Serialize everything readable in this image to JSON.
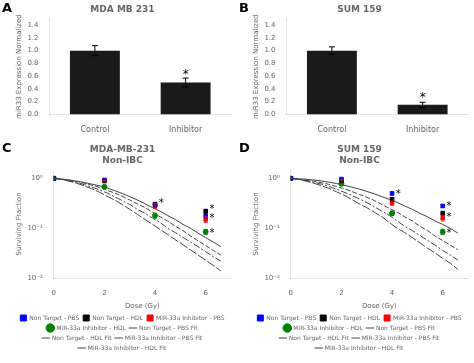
{
  "chart_data": [
    {
      "type": "bar",
      "panel_label": "A",
      "title": "MDA MB 231",
      "categories": [
        "Control",
        "Inhibitor"
      ],
      "values": [
        1.0,
        0.5
      ],
      "errors": [
        0.08,
        0.07
      ],
      "color": "#1a1a1a",
      "ylabel": "miR33 Expression Normalized",
      "ylim": [
        0,
        1.5
      ],
      "yticks": [
        {
          "value": 0,
          "label": "0.0"
        },
        0.2,
        0.4,
        0.6,
        0.8,
        {
          "value": 1,
          "label": "1.0"
        },
        1.2,
        1.4
      ],
      "grid": false,
      "annotations": [
        {
          "x": "Inhibitor",
          "y": 0.58,
          "text": "*"
        }
      ]
    },
    {
      "type": "bar",
      "panel_label": "B",
      "title": "SUM 159",
      "categories": [
        "Control",
        "Inhibitor"
      ],
      "values": [
        1.0,
        0.15
      ],
      "errors": [
        0.06,
        0.04
      ],
      "color": "#1a1a1a",
      "ylabel": "miR33 Expression Normalized",
      "ylim": [
        0,
        1.5
      ],
      "yticks": [
        {
          "value": 0,
          "label": "0.0"
        },
        0.2,
        0.4,
        0.6,
        0.8,
        {
          "value": 1,
          "label": "1.0"
        },
        1.2,
        1.4
      ],
      "grid": false,
      "annotations": [
        {
          "x": "Inhibitor",
          "y": 0.22,
          "text": "*"
        }
      ]
    },
    {
      "type": "line",
      "panel_label": "C",
      "title": "MDA-MB-231\nNon-IBC",
      "xlabel": "Dose (Gy)",
      "ylabel": "Surviving Fraction",
      "log": "y",
      "xlim": [
        0,
        7
      ],
      "xticks": [
        0,
        2,
        4,
        6
      ],
      "ylim": [
        0.01,
        1.5
      ],
      "yticks": [
        {
          "value": 0.01,
          "label": "10⁻²"
        },
        {
          "value": 0.1,
          "label": "10⁻¹"
        },
        {
          "value": 1,
          "label": "10⁰"
        }
      ],
      "grid": false,
      "legend": "bottom",
      "series": [
        {
          "name": "Non Target - PBS",
          "type": "scatter",
          "color": "blue",
          "marker": "square",
          "x": [
            0,
            2,
            4,
            6
          ],
          "values": [
            1.0,
            0.93,
            0.3,
            0.18
          ],
          "errors": [
            0.0,
            0.03,
            0.03,
            0.02
          ]
        },
        {
          "name": "Non Target - HDL",
          "type": "scatter",
          "color": "black",
          "marker": "square",
          "x": [
            0,
            2,
            4,
            6
          ],
          "values": [
            1.0,
            0.9,
            0.3,
            0.22
          ],
          "errors": [
            0.0,
            0.03,
            0.03,
            0.02
          ]
        },
        {
          "name": "MiR-33a Inhibitor - PBS",
          "type": "scatter",
          "color": "red",
          "marker": "square",
          "x": [
            0,
            2,
            4,
            6
          ],
          "values": [
            1.0,
            0.88,
            0.28,
            0.15
          ],
          "errors": [
            0.0,
            0.03,
            0.03,
            0.02
          ]
        },
        {
          "name": "MiR-33a Inhibitor - HDL",
          "type": "scatter",
          "color": "green",
          "marker": "circle",
          "x": [
            0,
            2,
            4,
            6
          ],
          "values": [
            1.0,
            0.68,
            0.18,
            0.085
          ],
          "errors": [
            0.0,
            0.04,
            0.02,
            0.01
          ]
        },
        {
          "name": "Non Target - PBS Fit",
          "type": "line",
          "color": "#444444",
          "line_style": "solid",
          "x": [
            0,
            0.3,
            0.6,
            0.9,
            1.2,
            1.5,
            1.8,
            2.1,
            2.4,
            2.7,
            3.0,
            3.3,
            3.6,
            3.9,
            4.2,
            4.5,
            4.8,
            5.1,
            5.4,
            5.7,
            6.0,
            6.3,
            6.6
          ],
          "values": [
            1.0,
            0.97,
            0.93,
            0.88,
            0.83,
            0.77,
            0.71,
            0.64,
            0.57,
            0.5,
            0.43,
            0.37,
            0.31,
            0.26,
            0.22,
            0.18,
            0.15,
            0.12,
            0.1,
            0.08,
            0.065,
            0.053,
            0.043
          ]
        },
        {
          "name": "Non Target - HDL Fit",
          "type": "line",
          "color": "#444444",
          "line_style": "dashed",
          "x": [
            0,
            0.3,
            0.6,
            0.9,
            1.2,
            1.5,
            1.8,
            2.1,
            2.4,
            2.7,
            3.0,
            3.3,
            3.6,
            3.9,
            4.2,
            4.5,
            4.8,
            5.1,
            5.4,
            5.7,
            6.0,
            6.3,
            6.6
          ],
          "values": [
            1.0,
            0.97,
            0.92,
            0.87,
            0.8,
            0.73,
            0.66,
            0.58,
            0.51,
            0.44,
            0.37,
            0.31,
            0.26,
            0.21,
            0.17,
            0.14,
            0.11,
            0.09,
            0.07,
            0.056,
            0.045,
            0.036,
            0.029
          ]
        },
        {
          "name": "MiR-33a Inhibitor - PBS Fit",
          "type": "line",
          "color": "#444444",
          "line_style": "dashdot",
          "x": [
            0,
            0.3,
            0.6,
            0.9,
            1.2,
            1.5,
            1.8,
            2.1,
            2.4,
            2.7,
            3.0,
            3.3,
            3.6,
            3.9,
            4.2,
            4.5,
            4.8,
            5.1,
            5.4,
            5.7,
            6.0,
            6.3,
            6.6
          ],
          "values": [
            1.0,
            0.96,
            0.9,
            0.83,
            0.75,
            0.67,
            0.59,
            0.51,
            0.43,
            0.36,
            0.3,
            0.24,
            0.2,
            0.16,
            0.13,
            0.1,
            0.082,
            0.066,
            0.053,
            0.043,
            0.034,
            0.027,
            0.022
          ]
        },
        {
          "name": "MiR-33a Inhibitor - HDL Fit",
          "type": "line",
          "color": "#444444",
          "line_style": "longdash",
          "x": [
            0,
            0.3,
            0.6,
            0.9,
            1.2,
            1.5,
            1.8,
            2.1,
            2.4,
            2.7,
            3.0,
            3.3,
            3.6,
            3.9,
            4.2,
            4.5,
            4.8,
            5.1,
            5.4,
            5.7,
            6.0,
            6.3,
            6.6
          ],
          "values": [
            1.0,
            0.95,
            0.88,
            0.8,
            0.71,
            0.62,
            0.53,
            0.44,
            0.37,
            0.3,
            0.24,
            0.19,
            0.15,
            0.12,
            0.095,
            0.075,
            0.059,
            0.047,
            0.037,
            0.029,
            0.023,
            0.018,
            0.014
          ]
        }
      ],
      "annotations": [
        {
          "x": 4.15,
          "y": 0.34,
          "text": "*"
        },
        {
          "x": 6.15,
          "y": 0.26,
          "text": "*"
        },
        {
          "x": 6.15,
          "y": 0.17,
          "text": "*"
        },
        {
          "x": 6.15,
          "y": 0.088,
          "text": "*"
        }
      ]
    },
    {
      "type": "line",
      "panel_label": "D",
      "title": "SUM 159\nNon-IBC",
      "xlabel": "Dose (Gy)",
      "ylabel": "Surviving Fraction",
      "log": "y",
      "xlim": [
        0,
        7
      ],
      "xticks": [
        0,
        2,
        4,
        6
      ],
      "ylim": [
        0.01,
        1.5
      ],
      "yticks": [
        {
          "value": 0.01,
          "label": "10⁻²"
        },
        {
          "value": 0.1,
          "label": "10⁻¹"
        },
        {
          "value": 1,
          "label": "10⁰"
        }
      ],
      "grid": false,
      "legend": "bottom",
      "series": [
        {
          "name": "Non Target - PBS",
          "type": "scatter",
          "color": "blue",
          "marker": "square",
          "x": [
            0,
            2,
            4,
            6
          ],
          "values": [
            1.0,
            0.97,
            0.5,
            0.28
          ],
          "errors": [
            0.0,
            0.02,
            0.03,
            0.02
          ]
        },
        {
          "name": "Non Target - HDL",
          "type": "scatter",
          "color": "black",
          "marker": "square",
          "x": [
            0,
            2,
            4,
            6
          ],
          "values": [
            1.0,
            0.88,
            0.38,
            0.2
          ],
          "errors": [
            0.0,
            0.03,
            0.03,
            0.02
          ]
        },
        {
          "name": "MiR-33a Inhibitor - PBS",
          "type": "scatter",
          "color": "red",
          "marker": "square",
          "x": [
            0,
            2,
            4,
            6
          ],
          "values": [
            1.0,
            0.92,
            0.32,
            0.16
          ],
          "errors": [
            0.0,
            0.03,
            0.03,
            0.02
          ]
        },
        {
          "name": "MiR-33a Inhibitor - HDL",
          "type": "scatter",
          "color": "green",
          "marker": "circle",
          "x": [
            0,
            2,
            4,
            6
          ],
          "values": [
            1.0,
            0.78,
            0.2,
            0.085
          ],
          "errors": [
            0.0,
            0.03,
            0.02,
            0.01
          ]
        },
        {
          "name": "Non Target - PBS Fit",
          "type": "line",
          "color": "#444444",
          "line_style": "solid",
          "x": [
            0,
            0.3,
            0.6,
            0.9,
            1.2,
            1.5,
            1.8,
            2.1,
            2.4,
            2.7,
            3.0,
            3.3,
            3.6,
            3.9,
            4.2,
            4.5,
            4.8,
            5.1,
            5.4,
            5.7,
            6.0,
            6.3,
            6.6
          ],
          "values": [
            1.0,
            0.98,
            0.96,
            0.93,
            0.89,
            0.84,
            0.79,
            0.73,
            0.67,
            0.61,
            0.55,
            0.49,
            0.43,
            0.38,
            0.33,
            0.28,
            0.24,
            0.2,
            0.17,
            0.14,
            0.12,
            0.1,
            0.08
          ]
        },
        {
          "name": "Non Target - HDL Fit",
          "type": "line",
          "color": "#444444",
          "line_style": "dashed",
          "x": [
            0,
            0.3,
            0.6,
            0.9,
            1.2,
            1.5,
            1.8,
            2.1,
            2.4,
            2.7,
            3.0,
            3.3,
            3.6,
            3.9,
            4.2,
            4.5,
            4.8,
            5.1,
            5.4,
            5.7,
            6.0,
            6.3,
            6.6
          ],
          "values": [
            1.0,
            0.97,
            0.93,
            0.88,
            0.82,
            0.76,
            0.69,
            0.62,
            0.55,
            0.48,
            0.42,
            0.36,
            0.3,
            0.25,
            0.21,
            0.17,
            0.14,
            0.11,
            0.09,
            0.07,
            0.057,
            0.046,
            0.037
          ]
        },
        {
          "name": "MiR-33a Inhibitor - PBS Fit",
          "type": "line",
          "color": "#444444",
          "line_style": "dashdot",
          "x": [
            0,
            0.3,
            0.6,
            0.9,
            1.2,
            1.5,
            1.8,
            2.1,
            2.4,
            2.7,
            3.0,
            3.3,
            3.6,
            3.9,
            4.2,
            4.5,
            4.8,
            5.1,
            5.4,
            5.7,
            6.0,
            6.3,
            6.6
          ],
          "values": [
            1.0,
            0.96,
            0.91,
            0.84,
            0.77,
            0.69,
            0.61,
            0.53,
            0.46,
            0.39,
            0.33,
            0.27,
            0.22,
            0.18,
            0.14,
            0.11,
            0.09,
            0.072,
            0.057,
            0.046,
            0.036,
            0.029,
            0.023
          ]
        },
        {
          "name": "MiR-33a Inhibitor - HDL Fit",
          "type": "line",
          "color": "#444444",
          "line_style": "longdash",
          "x": [
            0,
            0.3,
            0.6,
            0.9,
            1.2,
            1.5,
            1.8,
            2.1,
            2.4,
            2.7,
            3.0,
            3.3,
            3.6,
            3.9,
            4.2,
            4.5,
            4.8,
            5.1,
            5.4,
            5.7,
            6.0,
            6.3,
            6.6
          ],
          "values": [
            1.0,
            0.95,
            0.88,
            0.8,
            0.72,
            0.63,
            0.54,
            0.46,
            0.38,
            0.31,
            0.26,
            0.21,
            0.17,
            0.13,
            0.1,
            0.082,
            0.065,
            0.051,
            0.04,
            0.032,
            0.025,
            0.02,
            0.015
          ]
        }
      ],
      "annotations": [
        {
          "x": 4.15,
          "y": 0.53,
          "text": "*"
        },
        {
          "x": 6.15,
          "y": 0.3,
          "text": "*"
        },
        {
          "x": 6.15,
          "y": 0.18,
          "text": "*"
        },
        {
          "x": 6.15,
          "y": 0.088,
          "text": "*"
        }
      ]
    }
  ]
}
